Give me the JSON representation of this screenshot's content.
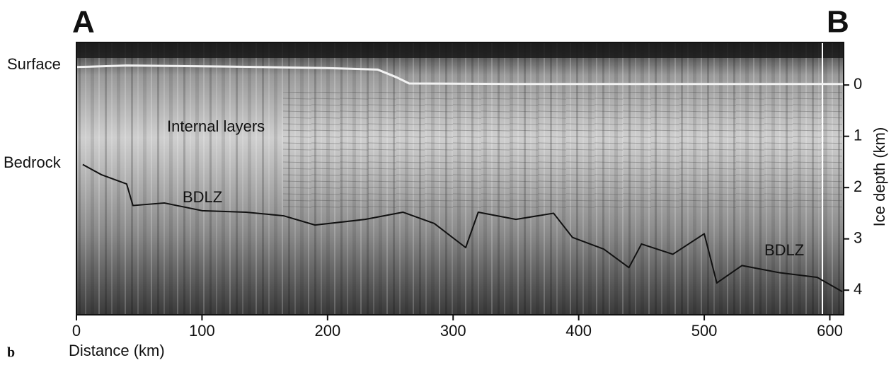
{
  "chart_data": {
    "type": "radargram",
    "labels": {
      "start": "A",
      "end": "B",
      "panel": "b"
    },
    "xlabel": "Distance (km)",
    "ylabel": "Ice depth (km)",
    "xlim": [
      0,
      611
    ],
    "xticks": [
      0,
      100,
      200,
      300,
      400,
      500,
      600
    ],
    "ylim": [
      -0.83,
      4.48
    ],
    "yticks": [
      0,
      1,
      2,
      3,
      4
    ],
    "y_inverted": true,
    "y_axis_side": "right",
    "annotations": [
      "Internal layers",
      "BDLZ",
      "BDLZ"
    ],
    "series": [
      {
        "name": "Surface",
        "color": "#f2f2f2",
        "x": [
          0,
          40,
          120,
          200,
          240,
          255,
          265,
          350,
          450,
          550,
          611
        ],
        "values": [
          -0.35,
          -0.38,
          -0.36,
          -0.33,
          -0.3,
          -0.15,
          -0.03,
          -0.02,
          -0.02,
          -0.02,
          -0.02
        ]
      },
      {
        "name": "Bedrock",
        "color": "#111111",
        "x": [
          5,
          20,
          40,
          45,
          70,
          100,
          135,
          165,
          190,
          230,
          260,
          285,
          310,
          320,
          350,
          380,
          395,
          420,
          440,
          450,
          475,
          500,
          510,
          530,
          560,
          590,
          610
        ],
        "values": [
          1.55,
          1.75,
          1.93,
          2.35,
          2.3,
          2.45,
          2.48,
          2.55,
          2.73,
          2.62,
          2.48,
          2.7,
          3.17,
          2.48,
          2.62,
          2.5,
          2.97,
          3.2,
          3.56,
          3.1,
          3.3,
          2.9,
          3.86,
          3.52,
          3.66,
          3.75,
          4.03
        ]
      }
    ]
  }
}
